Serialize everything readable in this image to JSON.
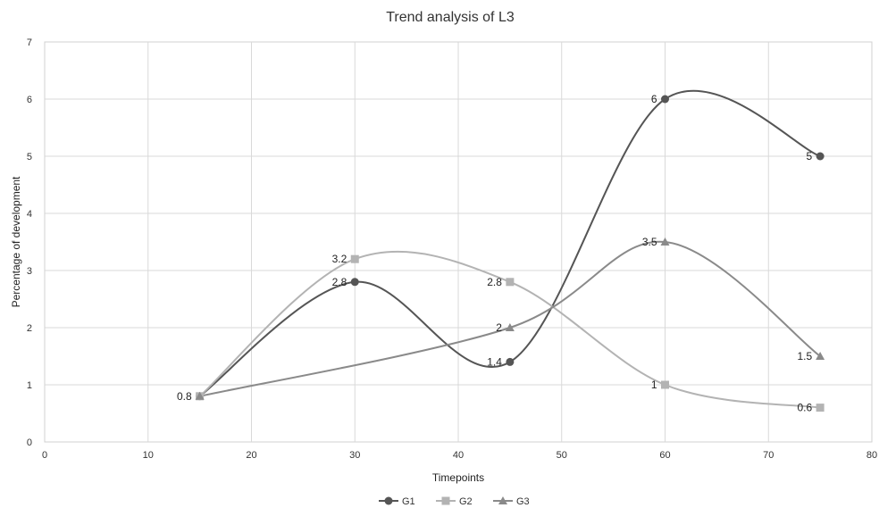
{
  "chart_data": {
    "type": "scatter",
    "title": "Trend analysis of L3",
    "xlabel": "Timepoints",
    "ylabel": "Percentage of development",
    "xlim": [
      0,
      80
    ],
    "ylim": [
      0,
      7
    ],
    "xticks": [
      0,
      10,
      20,
      30,
      40,
      50,
      60,
      70,
      80
    ],
    "yticks": [
      0,
      1,
      2,
      3,
      4,
      5,
      6,
      7
    ],
    "grid": true,
    "legend_position": "bottom",
    "smooth_lines": true,
    "series": [
      {
        "name": "G1",
        "marker": "circle",
        "color": "#555555",
        "x": [
          15,
          30,
          45,
          60,
          75
        ],
        "y": [
          0.8,
          2.8,
          1.4,
          6,
          5
        ],
        "labels": [
          "0.8",
          "2.8",
          "1.4",
          "6",
          "5"
        ]
      },
      {
        "name": "G2",
        "marker": "square",
        "color": "#b3b3b3",
        "x": [
          15,
          30,
          45,
          60,
          75
        ],
        "y": [
          0.8,
          3.2,
          2.8,
          1,
          0.6
        ],
        "labels": [
          "",
          "3.2",
          "2.8",
          "1",
          "0.6"
        ]
      },
      {
        "name": "G3",
        "marker": "triangle",
        "color": "#8a8a8a",
        "x": [
          15,
          45,
          60,
          75
        ],
        "y": [
          0.8,
          2,
          3.5,
          1.5
        ],
        "labels": [
          "",
          "2",
          "3.5",
          "1.5"
        ]
      }
    ]
  }
}
